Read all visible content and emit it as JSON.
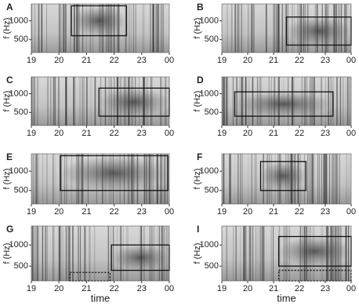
{
  "chart_data": [
    {
      "type": "spectrogram",
      "label": "A",
      "ylabel": "f (Hz)",
      "xlim": [
        19,
        24
      ],
      "ylim": [
        150,
        1450
      ],
      "xticks": [
        19,
        20,
        21,
        22,
        23,
        {
          "value": 24,
          "label": "00"
        }
      ],
      "yticks": [
        500,
        1000
      ],
      "boxes": [
        {
          "style": "solid",
          "x": [
            20.45,
            22.45
          ],
          "y": [
            600,
            1400
          ]
        }
      ]
    },
    {
      "type": "spectrogram",
      "label": "B",
      "ylabel": "f (Hz)",
      "xlim": [
        19,
        24
      ],
      "ylim": [
        150,
        1450
      ],
      "xticks": [
        19,
        20,
        21,
        22,
        23,
        {
          "value": 24,
          "label": "00"
        }
      ],
      "yticks": [
        500,
        1000
      ],
      "boxes": [
        {
          "style": "solid",
          "x": [
            21.5,
            24
          ],
          "y": [
            350,
            1100
          ]
        }
      ]
    },
    {
      "type": "spectrogram",
      "label": "C",
      "ylabel": "f (Hz)",
      "xlim": [
        19,
        24
      ],
      "ylim": [
        150,
        1450
      ],
      "xticks": [
        19,
        20,
        21,
        22,
        23,
        {
          "value": 24,
          "label": "00"
        }
      ],
      "yticks": [
        500,
        1000
      ],
      "boxes": [
        {
          "style": "solid",
          "x": [
            21.45,
            24
          ],
          "y": [
            400,
            1150
          ]
        }
      ]
    },
    {
      "type": "spectrogram",
      "label": "D",
      "ylabel": "f (Hz)",
      "xlim": [
        19,
        24
      ],
      "ylim": [
        150,
        1450
      ],
      "xticks": [
        19,
        20,
        21,
        22,
        23,
        {
          "value": 24,
          "label": "00"
        }
      ],
      "yticks": [
        500,
        1000
      ],
      "boxes": [
        {
          "style": "solid",
          "x": [
            19.5,
            23.3
          ],
          "y": [
            400,
            1050
          ]
        }
      ]
    },
    {
      "type": "spectrogram",
      "label": "E",
      "ylabel": "f (Hz)",
      "xlim": [
        19,
        24
      ],
      "ylim": [
        150,
        1450
      ],
      "xticks": [
        19,
        20,
        21,
        22,
        23,
        {
          "value": 24,
          "label": "00"
        }
      ],
      "yticks": [
        500,
        1000
      ],
      "boxes": [
        {
          "style": "solid",
          "x": [
            20.05,
            23.95
          ],
          "y": [
            500,
            1400
          ]
        }
      ]
    },
    {
      "type": "spectrogram",
      "label": "F",
      "ylabel": "f (Hz)",
      "xlim": [
        19,
        24
      ],
      "ylim": [
        150,
        1450
      ],
      "xticks": [
        19,
        20,
        21,
        22,
        23,
        {
          "value": 24,
          "label": "00"
        }
      ],
      "yticks": [
        500,
        1000
      ],
      "boxes": [
        {
          "style": "solid",
          "x": [
            20.5,
            22.25
          ],
          "y": [
            500,
            1250
          ]
        }
      ]
    },
    {
      "type": "spectrogram",
      "label": "G",
      "ylabel": "f (Hz)",
      "xlabel": "time",
      "xlim": [
        19,
        24
      ],
      "ylim": [
        150,
        1450
      ],
      "xticks": [
        19,
        20,
        21,
        22,
        23,
        {
          "value": 24,
          "label": "00"
        }
      ],
      "yticks": [
        500,
        1000
      ],
      "boxes": [
        {
          "style": "solid",
          "x": [
            21.9,
            24
          ],
          "y": [
            400,
            1000
          ]
        },
        {
          "style": "dotted",
          "x": [
            20.4,
            21.85
          ],
          "y": [
            150,
            350
          ]
        }
      ]
    },
    {
      "type": "spectrogram",
      "label": "I",
      "ylabel": "f (Hz)",
      "xlabel": "time",
      "xlim": [
        19,
        24
      ],
      "ylim": [
        150,
        1450
      ],
      "xticks": [
        19,
        20,
        21,
        22,
        23,
        {
          "value": 24,
          "label": "00"
        }
      ],
      "yticks": [
        500,
        1000
      ],
      "boxes": [
        {
          "style": "solid",
          "x": [
            21.2,
            24
          ],
          "y": [
            500,
            1200
          ]
        },
        {
          "style": "dotted",
          "x": [
            21.2,
            24
          ],
          "y": [
            150,
            400
          ]
        }
      ]
    }
  ]
}
